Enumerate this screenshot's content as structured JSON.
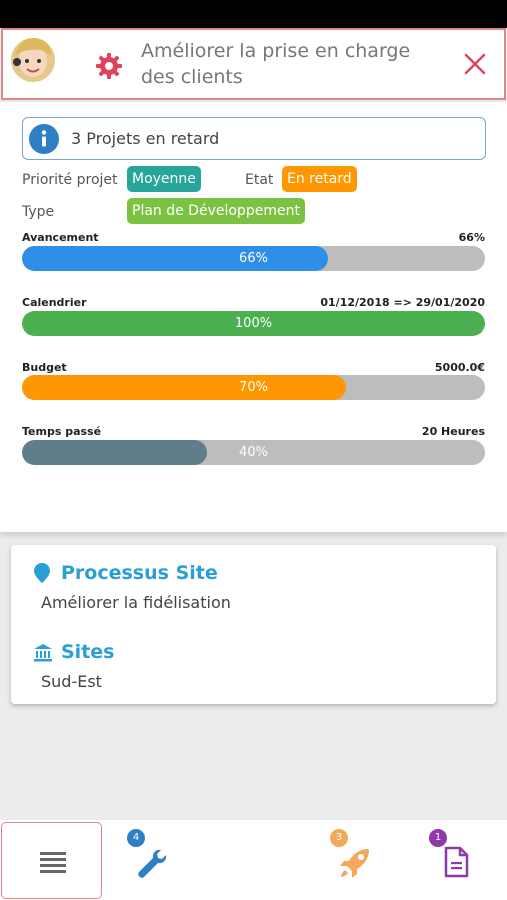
{
  "header": {
    "title": "Améliorer la prise en charge des clients"
  },
  "alert": {
    "text": "3 Projets en retard"
  },
  "fields": {
    "priority_label": "Priorité projet",
    "priority_value": "Moyenne",
    "state_label": "Etat",
    "state_value": "En retard",
    "type_label": "Type",
    "type_value": "Plan de Développement"
  },
  "progress": [
    {
      "label": "Avancement",
      "right": "66%",
      "percent_text": "66%",
      "value": 0.66,
      "color": "#2f8fe6"
    },
    {
      "label": "Calendrier",
      "right": "01/12/2018 => 29/01/2020",
      "percent_text": "100%",
      "value": 1.0,
      "color": "#4caf50"
    },
    {
      "label": "Budget",
      "right": "5000.0€",
      "percent_text": "70%",
      "value": 0.7,
      "color": "#ff9800"
    },
    {
      "label": "Temps passé",
      "right": "20 Heures",
      "percent_text": "40%",
      "value": 0.4,
      "color": "#607d8b"
    }
  ],
  "card": {
    "process_title": "Processus Site",
    "process_value": "Améliorer la fidélisation",
    "sites_title": "Sites",
    "sites_value": "Sud-Est"
  },
  "tabbar": {
    "tools_badge": "4",
    "rocket_badge": "3",
    "doc_badge": "1"
  },
  "colors": {
    "accent_red": "#e0868f",
    "gear": "#e0435b",
    "title_blue": "#2a9fd6",
    "badge_teal": "#26a69a",
    "badge_orange": "#ff9800",
    "badge_green": "#7cc242"
  }
}
